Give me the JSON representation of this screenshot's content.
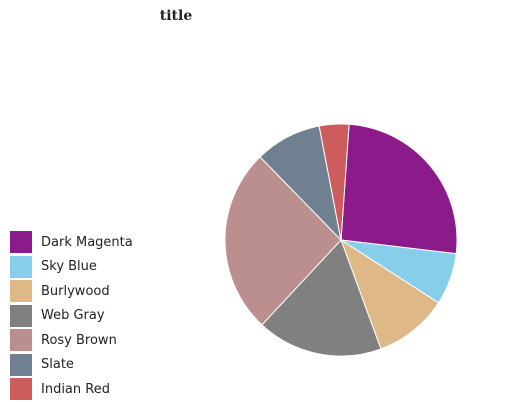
{
  "chart_data": {
    "type": "pie",
    "title": "title",
    "slices": [
      {
        "label": "Dark Magenta",
        "value": 25,
        "color": "#8b1a8b"
      },
      {
        "label": "Sky Blue",
        "value": 7,
        "color": "#87ceeb"
      },
      {
        "label": "Burlywood",
        "value": 10,
        "color": "#deb887"
      },
      {
        "label": "Web Gray",
        "value": 17,
        "color": "#808080"
      },
      {
        "label": "Rosy Brown",
        "value": 25,
        "color": "#bc8f8f"
      },
      {
        "label": "Slate",
        "value": 9,
        "color": "#708090"
      },
      {
        "label": "Indian Red",
        "value": 4,
        "color": "#cd5c5c"
      }
    ],
    "legend_position": "bottom-left"
  }
}
